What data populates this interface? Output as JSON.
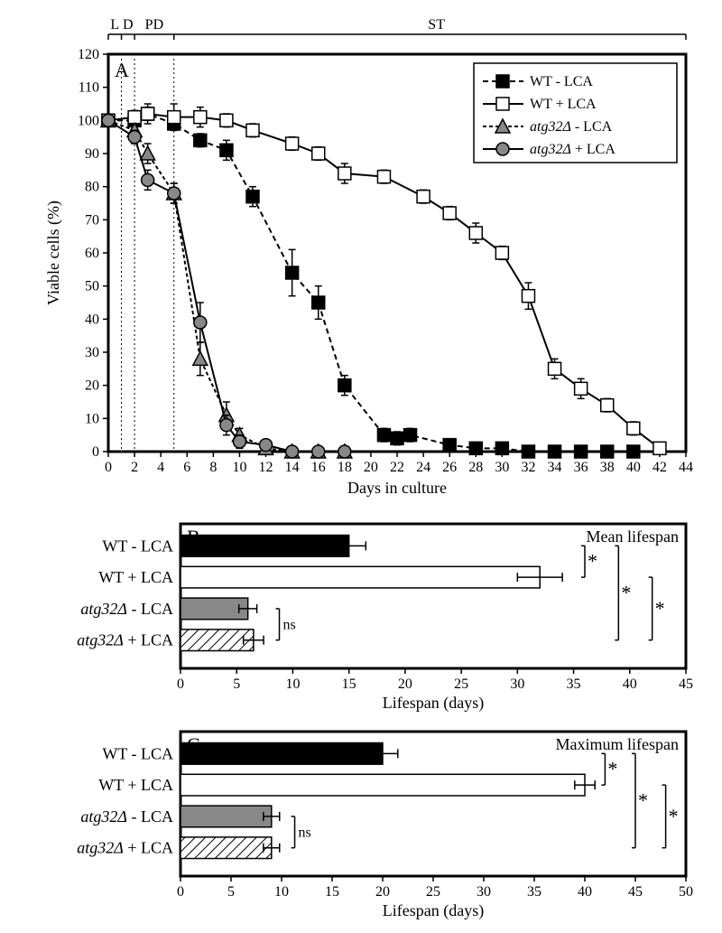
{
  "colors": {
    "bg": "#ffffff",
    "axis": "#000000",
    "wt_minus_fill": "#000000",
    "wt_plus_fill": "#ffffff",
    "atg_minus_fill": "#888888",
    "atg_plus_fill": "#888888",
    "hatch": "#000000",
    "error": "#000000",
    "grid": "#000000",
    "phase_line": "#000000"
  },
  "panelA": {
    "letter": "A",
    "x_axis": {
      "min": 0,
      "max": 44,
      "step": 2,
      "label": "Days in culture"
    },
    "y_axis": {
      "min": 0,
      "max": 120,
      "step": 10,
      "label": "Viable cells (%)"
    },
    "phases": {
      "labels": [
        "L",
        "D",
        "PD",
        "ST"
      ],
      "positions": [
        0.5,
        1.5,
        3.5,
        25
      ],
      "lines": [
        1,
        2,
        5
      ]
    },
    "series": [
      {
        "name": "WT - LCA",
        "marker": "square",
        "marker_fill": "#000000",
        "line_dash": "6,4",
        "data": [
          {
            "x": 0,
            "y": 100,
            "e": 0
          },
          {
            "x": 2,
            "y": 100,
            "e": 2
          },
          {
            "x": 3,
            "y": 102,
            "e": 3
          },
          {
            "x": 5,
            "y": 99,
            "e": 2
          },
          {
            "x": 7,
            "y": 94,
            "e": 2
          },
          {
            "x": 9,
            "y": 91,
            "e": 3
          },
          {
            "x": 11,
            "y": 77,
            "e": 3
          },
          {
            "x": 14,
            "y": 54,
            "e": 7
          },
          {
            "x": 16,
            "y": 45,
            "e": 5
          },
          {
            "x": 18,
            "y": 20,
            "e": 3
          },
          {
            "x": 21,
            "y": 5,
            "e": 2
          },
          {
            "x": 22,
            "y": 4,
            "e": 2
          },
          {
            "x": 23,
            "y": 5,
            "e": 2
          },
          {
            "x": 26,
            "y": 2,
            "e": 1
          },
          {
            "x": 28,
            "y": 1,
            "e": 1
          },
          {
            "x": 30,
            "y": 1,
            "e": 1
          },
          {
            "x": 32,
            "y": 0,
            "e": 0
          },
          {
            "x": 34,
            "y": 0,
            "e": 0
          },
          {
            "x": 36,
            "y": 0,
            "e": 0
          },
          {
            "x": 38,
            "y": 0,
            "e": 0
          },
          {
            "x": 40,
            "y": 0,
            "e": 0
          }
        ]
      },
      {
        "name": "WT + LCA",
        "marker": "square",
        "marker_fill": "#ffffff",
        "line_dash": "",
        "data": [
          {
            "x": 0,
            "y": 100,
            "e": 0
          },
          {
            "x": 2,
            "y": 101,
            "e": 2
          },
          {
            "x": 3,
            "y": 102,
            "e": 2
          },
          {
            "x": 5,
            "y": 101,
            "e": 4
          },
          {
            "x": 7,
            "y": 101,
            "e": 3
          },
          {
            "x": 9,
            "y": 100,
            "e": 2
          },
          {
            "x": 11,
            "y": 97,
            "e": 2
          },
          {
            "x": 14,
            "y": 93,
            "e": 2
          },
          {
            "x": 16,
            "y": 90,
            "e": 2
          },
          {
            "x": 18,
            "y": 84,
            "e": 3
          },
          {
            "x": 21,
            "y": 83,
            "e": 2
          },
          {
            "x": 24,
            "y": 77,
            "e": 2
          },
          {
            "x": 26,
            "y": 72,
            "e": 2
          },
          {
            "x": 28,
            "y": 66,
            "e": 3
          },
          {
            "x": 30,
            "y": 60,
            "e": 2
          },
          {
            "x": 32,
            "y": 47,
            "e": 4
          },
          {
            "x": 34,
            "y": 25,
            "e": 3
          },
          {
            "x": 36,
            "y": 19,
            "e": 3
          },
          {
            "x": 38,
            "y": 14,
            "e": 2
          },
          {
            "x": 40,
            "y": 7,
            "e": 2
          },
          {
            "x": 42,
            "y": 1,
            "e": 1
          }
        ]
      },
      {
        "name_prefix_italic": "atg32Δ",
        "name_suffix": " - LCA",
        "marker": "triangle",
        "marker_fill": "#888888",
        "line_dash": "4,3",
        "data": [
          {
            "x": 0,
            "y": 100,
            "e": 0
          },
          {
            "x": 2,
            "y": 97,
            "e": 2
          },
          {
            "x": 3,
            "y": 90,
            "e": 3
          },
          {
            "x": 5,
            "y": 78,
            "e": 3
          },
          {
            "x": 7,
            "y": 28,
            "e": 5
          },
          {
            "x": 9,
            "y": 11,
            "e": 4
          },
          {
            "x": 10,
            "y": 5,
            "e": 2
          },
          {
            "x": 12,
            "y": 1,
            "e": 1
          },
          {
            "x": 14,
            "y": 0,
            "e": 0
          },
          {
            "x": 16,
            "y": 0,
            "e": 0
          },
          {
            "x": 18,
            "y": 0,
            "e": 0
          }
        ]
      },
      {
        "name_prefix_italic": "atg32Δ",
        "name_suffix": " + LCA",
        "marker": "circle",
        "marker_fill": "#888888",
        "line_dash": "",
        "data": [
          {
            "x": 0,
            "y": 100,
            "e": 0
          },
          {
            "x": 2,
            "y": 95,
            "e": 2
          },
          {
            "x": 3,
            "y": 82,
            "e": 3
          },
          {
            "x": 5,
            "y": 78,
            "e": 3
          },
          {
            "x": 7,
            "y": 39,
            "e": 6
          },
          {
            "x": 9,
            "y": 8,
            "e": 3
          },
          {
            "x": 10,
            "y": 3,
            "e": 2
          },
          {
            "x": 12,
            "y": 2,
            "e": 1
          },
          {
            "x": 14,
            "y": 0,
            "e": 0
          },
          {
            "x": 16,
            "y": 0,
            "e": 0
          },
          {
            "x": 18,
            "y": 0,
            "e": 0
          }
        ]
      }
    ]
  },
  "panelB": {
    "letter": "B",
    "title": "Mean lifespan",
    "x_axis": {
      "min": 0,
      "max": 45,
      "step": 5,
      "label": "Lifespan (days)"
    },
    "bars": [
      {
        "label_plain": "WT - LCA",
        "value": 15,
        "err": 1.5,
        "fill": "#000000",
        "hatch": false
      },
      {
        "label_plain": "WT + LCA",
        "value": 32,
        "err": 2,
        "fill": "#ffffff",
        "hatch": false
      },
      {
        "label_italic": "atg32Δ",
        "label_suffix": " - LCA",
        "value": 6,
        "err": 0.8,
        "fill": "#888888",
        "hatch": false
      },
      {
        "label_italic": "atg32Δ",
        "label_suffix": " + LCA",
        "value": 6.5,
        "err": 0.9,
        "fill": "#ffffff",
        "hatch": true
      }
    ],
    "sig": {
      "ns_label": "ns",
      "star_label": "*",
      "stars": [
        {
          "from": 0,
          "to": 1,
          "x": 36
        },
        {
          "from": 0,
          "to": 3,
          "x": 39
        },
        {
          "from": 1,
          "to": 3,
          "x": 42
        }
      ]
    }
  },
  "panelC": {
    "letter": "C",
    "title": "Maximum lifespan",
    "x_axis": {
      "min": 0,
      "max": 50,
      "step": 5,
      "label": "Lifespan (days)"
    },
    "bars": [
      {
        "label_plain": "WT - LCA",
        "value": 20,
        "err": 1.5,
        "fill": "#000000",
        "hatch": false
      },
      {
        "label_plain": "WT + LCA",
        "value": 40,
        "err": 1,
        "fill": "#ffffff",
        "hatch": false
      },
      {
        "label_italic": "atg32Δ",
        "label_suffix": " - LCA",
        "value": 9,
        "err": 0.8,
        "fill": "#888888",
        "hatch": false
      },
      {
        "label_italic": "atg32Δ",
        "label_suffix": " + LCA",
        "value": 9,
        "err": 0.8,
        "fill": "#ffffff",
        "hatch": true
      }
    ],
    "sig": {
      "ns_label": "ns",
      "star_label": "*",
      "stars": [
        {
          "from": 0,
          "to": 1,
          "x": 42
        },
        {
          "from": 0,
          "to": 3,
          "x": 45
        },
        {
          "from": 1,
          "to": 3,
          "x": 48
        }
      ]
    }
  }
}
